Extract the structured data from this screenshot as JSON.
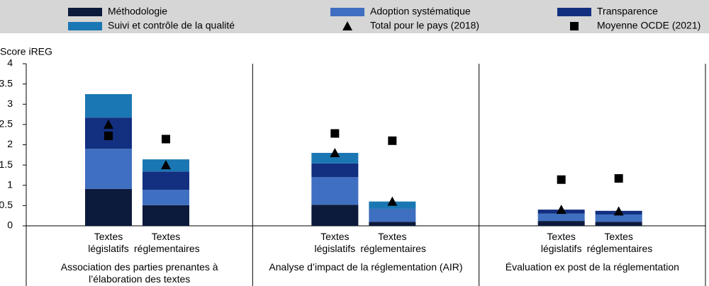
{
  "chart_data": {
    "type": "stacked-bar",
    "y_label": "Score iREG",
    "categories": [
      "Textes législatifs",
      "Textes réglementaires",
      "Textes législatifs",
      "Textes réglementaires",
      "Textes législatifs",
      "Textes réglementaires"
    ],
    "groups": [
      "Association des parties prenantes à l’élaboration des textes",
      "Analyse d’impact de la réglementation (AIR)",
      "Évaluation ex post de la réglementation"
    ],
    "series": [
      {
        "name": "Méthodologie",
        "color": "#0c1a3c",
        "kind": "bar",
        "values": [
          0.91,
          0.51,
          0.52,
          0.1,
          0.12,
          0.1
        ]
      },
      {
        "name": "Adoption systématique",
        "color": "#3f6fc0",
        "kind": "bar",
        "values": [
          0.99,
          0.38,
          0.68,
          0.32,
          0.18,
          0.18
        ]
      },
      {
        "name": "Transparence",
        "color": "#122f80",
        "kind": "bar",
        "values": [
          0.77,
          0.45,
          0.34,
          0,
          0.1,
          0.09
        ]
      },
      {
        "name": "Suivi et contrôle de la qualité",
        "color": "#1b77b3",
        "kind": "bar",
        "values": [
          0.58,
          0.3,
          0.26,
          0.18,
          0,
          0
        ]
      },
      {
        "name": "Total pour le pays (2018)",
        "color": "#000000",
        "kind": "triangle",
        "values": [
          2.5,
          1.5,
          1.8,
          0.6,
          0.4,
          0.36
        ]
      },
      {
        "name": "Moyenne OCDE (2021)",
        "color": "#000000",
        "kind": "square",
        "values": [
          2.22,
          2.14,
          2.28,
          2.1,
          1.14,
          1.17
        ]
      }
    ],
    "ylim": [
      0,
      4
    ],
    "yticks": [
      0,
      0.5,
      1,
      1.5,
      2,
      2.5,
      3,
      3.5,
      4
    ]
  }
}
